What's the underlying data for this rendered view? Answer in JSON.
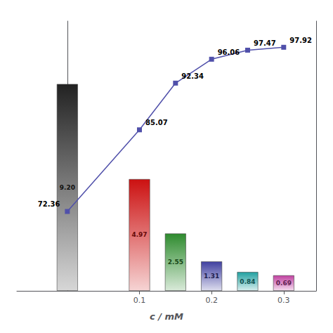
{
  "chart_data": {
    "type": "bar",
    "xlabel": "c / mM",
    "x": [
      0.0,
      0.1,
      0.15,
      0.2,
      0.25,
      0.3
    ],
    "xlim": [
      -0.07,
      0.345
    ],
    "xticks": [
      0.1,
      0.2,
      0.3
    ],
    "ylim": [
      0,
      12
    ],
    "y2lim": [
      60,
      102
    ],
    "tick_labels": "x",
    "grid": false,
    "data_labels": true,
    "series": [
      {
        "type": "bar",
        "values": [
          9.2,
          4.97,
          2.55,
          1.31,
          0.84,
          0.69
        ],
        "value_labels": [
          "9.20",
          "4.97",
          "2.55",
          "1.31",
          "0.84",
          "0.69"
        ],
        "colors": [
          "#222222",
          "#cc1111",
          "#2e8b2e",
          "#4040a0",
          "#20a0a0",
          "#c040a0"
        ]
      },
      {
        "type": "line",
        "axis": "y2",
        "values": [
          72.36,
          85.07,
          92.34,
          96.06,
          97.47,
          97.92
        ],
        "value_labels": [
          "72.36",
          "85.07",
          "92.34",
          "96.06",
          "97.47",
          "97.92"
        ],
        "color": "#5050aa",
        "marker": "square"
      }
    ]
  }
}
